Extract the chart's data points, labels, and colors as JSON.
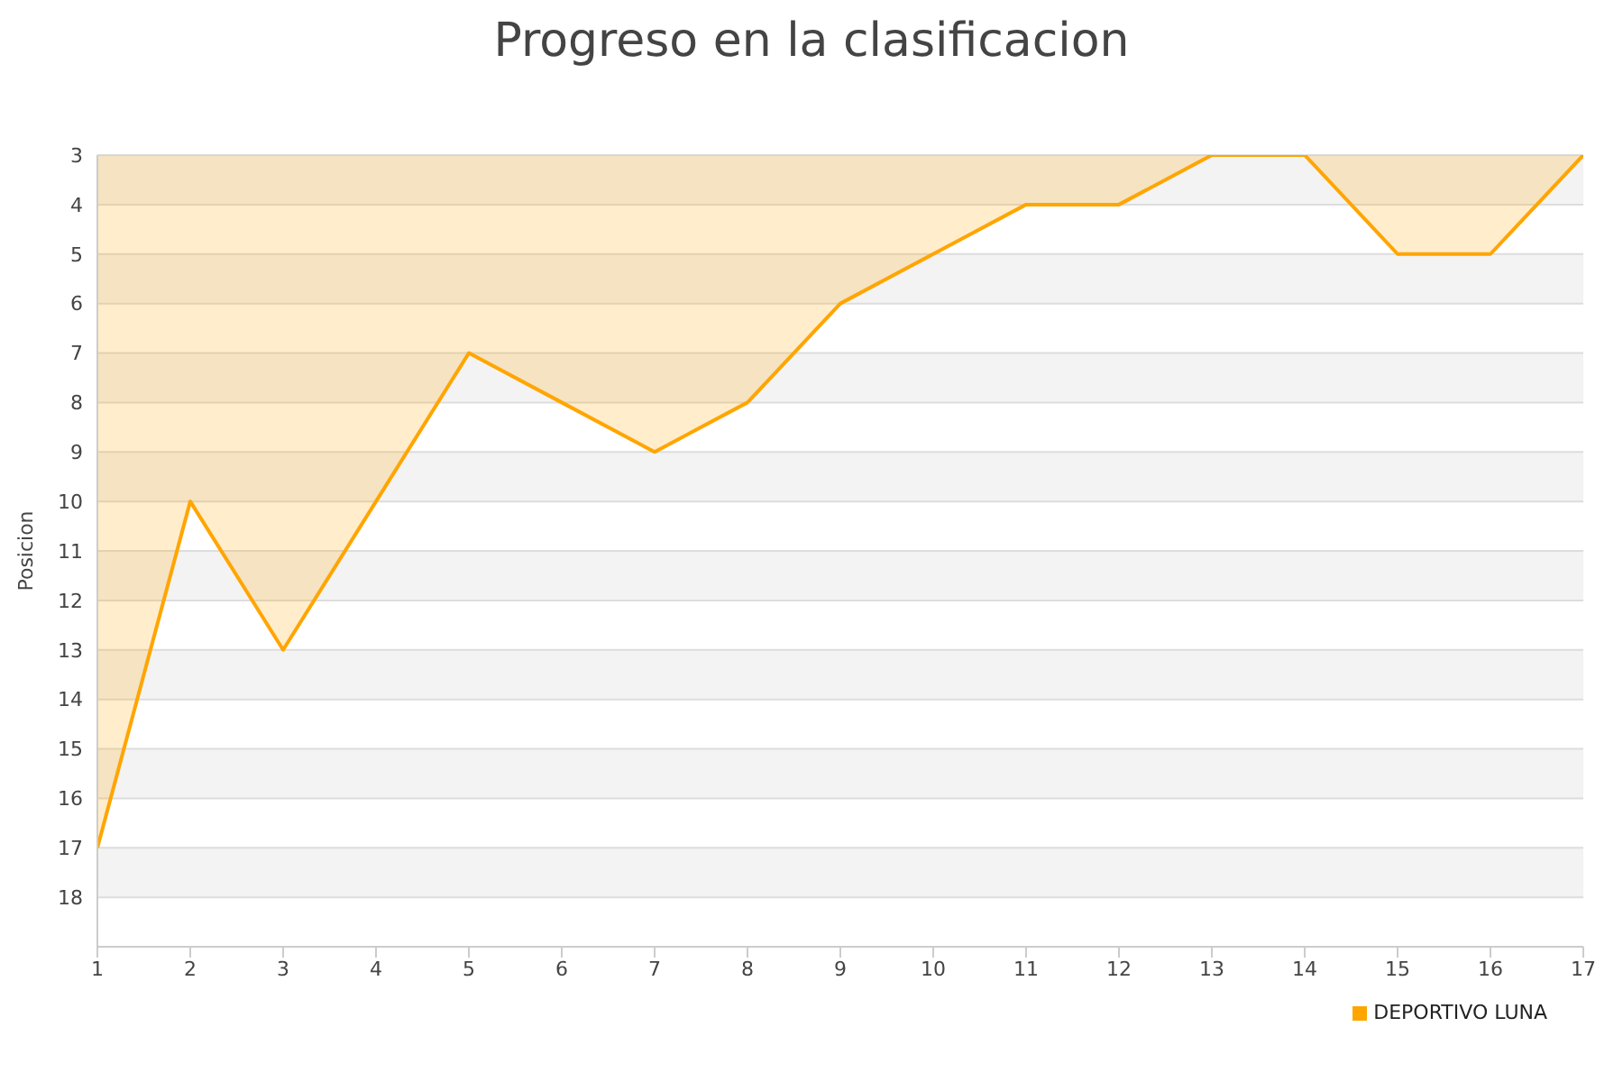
{
  "chart_data": {
    "type": "area",
    "title": "Progreso en la clasificacion",
    "ylabel": "Posicion",
    "x": [
      1,
      2,
      3,
      4,
      5,
      6,
      7,
      8,
      9,
      10,
      11,
      12,
      13,
      14,
      15,
      16,
      17
    ],
    "series": [
      {
        "name": "DEPORTIVO LUNA",
        "color": "#ffa500",
        "values": [
          17,
          10,
          13,
          10,
          7,
          8,
          9,
          8,
          6,
          5,
          4,
          4,
          3,
          3,
          5,
          5,
          3
        ]
      }
    ],
    "xlim": [
      1,
      17
    ],
    "xticks": [
      1,
      2,
      3,
      4,
      5,
      6,
      7,
      8,
      9,
      10,
      11,
      12,
      13,
      14,
      15,
      16,
      17
    ],
    "ylim": [
      19,
      3
    ],
    "yticks": [
      3,
      4,
      5,
      6,
      7,
      8,
      9,
      10,
      11,
      12,
      13,
      14,
      15,
      16,
      17,
      18
    ],
    "grid": "y",
    "legend": "bottom right",
    "marker": "none",
    "line_style": "solid"
  }
}
